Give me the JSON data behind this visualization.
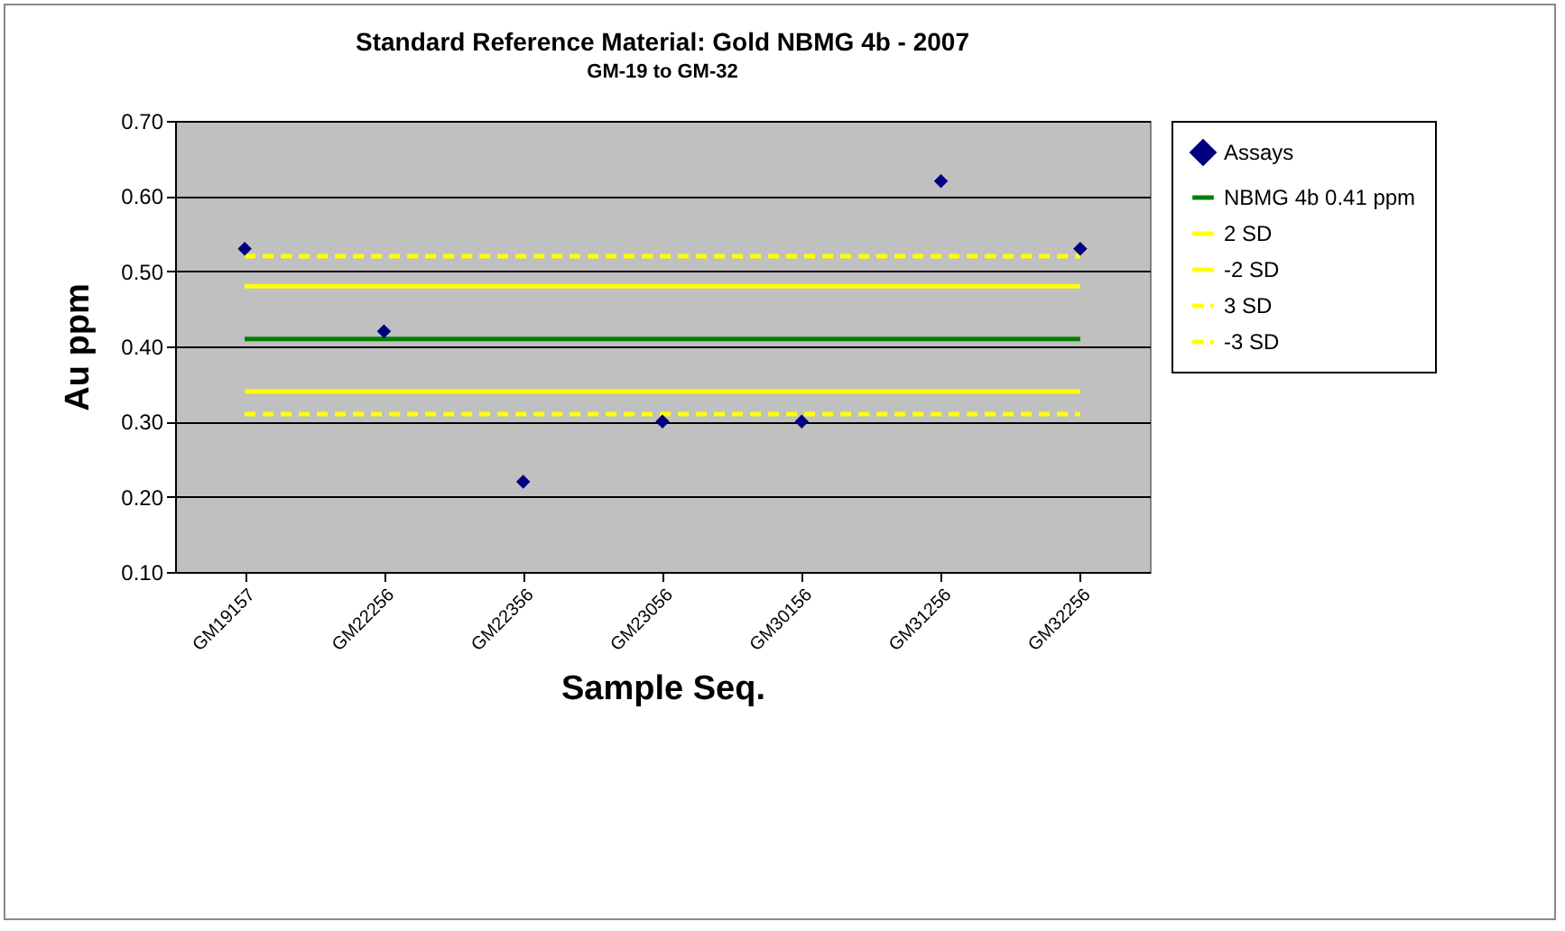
{
  "chart_data": {
    "type": "scatter",
    "title": "Standard Reference Material:  Gold NBMG 4b - 2007",
    "subtitle": "GM-19 to GM-32",
    "xlabel": "Sample Seq.",
    "ylabel": "Au ppm",
    "categories": [
      "GM19157",
      "GM22256",
      "GM22356",
      "GM23056",
      "GM30156",
      "GM31256",
      "GM32256"
    ],
    "ylim": [
      0.1,
      0.7
    ],
    "yticks": [
      {
        "value": 0.1,
        "label": "0.10"
      },
      {
        "value": 0.2,
        "label": "0.20"
      },
      {
        "value": 0.3,
        "label": "0.30"
      },
      {
        "value": 0.4,
        "label": "0.40"
      },
      {
        "value": 0.5,
        "label": "0.50"
      },
      {
        "value": 0.6,
        "label": "0.60"
      },
      {
        "value": 0.7,
        "label": "0.70"
      }
    ],
    "grid": "y",
    "legend": "right",
    "series": [
      {
        "name": "Assays",
        "marker": "diamond",
        "color": "#000080",
        "values": [
          0.53,
          0.42,
          0.22,
          0.3,
          0.3,
          0.62,
          0.53
        ]
      },
      {
        "name": "NBMG 4b 0.41 ppm",
        "type": "line",
        "line_style": "solid",
        "color": "#008000",
        "values": [
          0.41,
          0.41,
          0.41,
          0.41,
          0.41,
          0.41,
          0.41
        ]
      },
      {
        "name": "2 SD",
        "type": "line",
        "line_style": "solid",
        "color": "#ffff00",
        "values": [
          0.48,
          0.48,
          0.48,
          0.48,
          0.48,
          0.48,
          0.48
        ]
      },
      {
        "name": "-2 SD",
        "type": "line",
        "line_style": "solid",
        "color": "#ffff00",
        "values": [
          0.34,
          0.34,
          0.34,
          0.34,
          0.34,
          0.34,
          0.34
        ]
      },
      {
        "name": "3 SD",
        "type": "line",
        "line_style": "dashed",
        "color": "#ffff00",
        "values": [
          0.52,
          0.52,
          0.52,
          0.52,
          0.52,
          0.52,
          0.52
        ]
      },
      {
        "name": "-3 SD",
        "type": "line",
        "line_style": "dashed",
        "color": "#ffff00",
        "values": [
          0.31,
          0.31,
          0.31,
          0.31,
          0.31,
          0.31,
          0.31
        ]
      }
    ]
  }
}
